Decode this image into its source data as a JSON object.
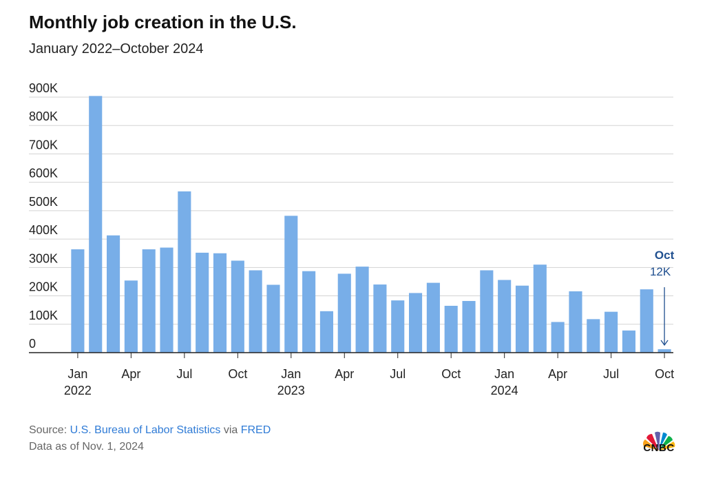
{
  "header": {
    "title": "Monthly job creation in the U.S.",
    "subtitle": "January 2022–October 2024"
  },
  "chart_data": {
    "type": "bar",
    "title": "Monthly job creation in the U.S.",
    "subtitle": "January 2022–October 2024",
    "xlabel": "",
    "ylabel": "",
    "ylim": [
      0,
      900000
    ],
    "yticks": [
      0,
      100000,
      200000,
      300000,
      400000,
      500000,
      600000,
      700000,
      800000,
      900000
    ],
    "ytick_labels": [
      "0",
      "100K",
      "200K",
      "300K",
      "400K",
      "500K",
      "600K",
      "700K",
      "800K",
      "900K"
    ],
    "grid": true,
    "bar_color": "#78aee8",
    "annotation_color": "#1f4f8f",
    "categories": [
      "2022-01",
      "2022-02",
      "2022-03",
      "2022-04",
      "2022-05",
      "2022-06",
      "2022-07",
      "2022-08",
      "2022-09",
      "2022-10",
      "2022-11",
      "2022-12",
      "2023-01",
      "2023-02",
      "2023-03",
      "2023-04",
      "2023-05",
      "2023-06",
      "2023-07",
      "2023-08",
      "2023-09",
      "2023-10",
      "2023-11",
      "2023-12",
      "2024-01",
      "2024-02",
      "2024-03",
      "2024-04",
      "2024-05",
      "2024-06",
      "2024-07",
      "2024-08",
      "2024-09",
      "2024-10"
    ],
    "values": [
      364000,
      904000,
      413000,
      254000,
      364000,
      370000,
      568000,
      352000,
      350000,
      324000,
      290000,
      239000,
      482000,
      287000,
      146000,
      278000,
      303000,
      240000,
      184000,
      210000,
      246000,
      165000,
      182000,
      290000,
      256000,
      236000,
      310000,
      108000,
      216000,
      118000,
      144000,
      78000,
      223000,
      12000
    ],
    "x_ticks": [
      {
        "index": 0,
        "month": "Jan",
        "year": "2022"
      },
      {
        "index": 3,
        "month": "Apr",
        "year": ""
      },
      {
        "index": 6,
        "month": "Jul",
        "year": ""
      },
      {
        "index": 9,
        "month": "Oct",
        "year": ""
      },
      {
        "index": 12,
        "month": "Jan",
        "year": "2023"
      },
      {
        "index": 15,
        "month": "Apr",
        "year": ""
      },
      {
        "index": 18,
        "month": "Jul",
        "year": ""
      },
      {
        "index": 21,
        "month": "Oct",
        "year": ""
      },
      {
        "index": 24,
        "month": "Jan",
        "year": "2024"
      },
      {
        "index": 27,
        "month": "Apr",
        "year": ""
      },
      {
        "index": 30,
        "month": "Jul",
        "year": ""
      },
      {
        "index": 33,
        "month": "Oct",
        "year": ""
      }
    ],
    "annotation": {
      "index": 33,
      "label": "Oct",
      "value_text": "12K"
    }
  },
  "footer": {
    "source_prefix": "Source: ",
    "source_link": "U.S. Bureau of Labor Statistics",
    "source_via": " via ",
    "source_link2": "FRED",
    "data_as_of": "Data as of Nov. 1, 2024"
  },
  "logo": {
    "text": "CNBC"
  }
}
